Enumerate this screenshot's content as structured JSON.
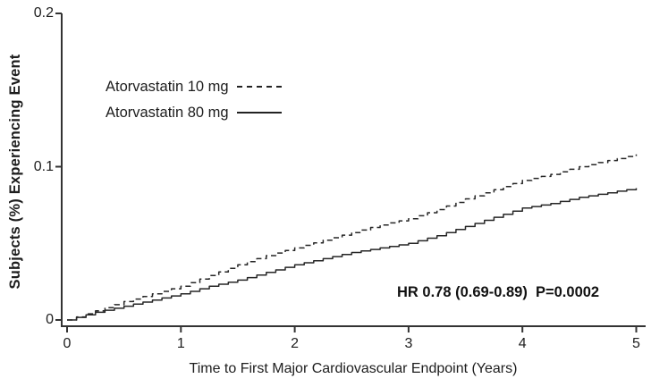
{
  "figure": {
    "y_axis_label": "Subjects (%) Experiencing Event",
    "x_axis_label": "Time to First Major Cardiovascular Endpoint (Years)",
    "annotation": "HR 0.78 (0.69-0.89)  P=0.0002",
    "legend": [
      {
        "label": "Atorvastatin 10 mg",
        "line_style": "dashed"
      },
      {
        "label": "Atorvastatin 80 mg",
        "line_style": "solid"
      }
    ],
    "colors": {
      "line": "#262626",
      "axis": "#333333",
      "background": "#ffffff",
      "text": "#1a1a1a"
    }
  },
  "chart_data": {
    "type": "line",
    "title": "",
    "xlabel": "Time to First Major Cardiovascular Endpoint (Years)",
    "ylabel": "Subjects (%) Experiencing Event",
    "xlim": [
      0,
      5
    ],
    "ylim": [
      0,
      0.2
    ],
    "x_ticks": [
      0,
      1,
      2,
      3,
      4,
      5
    ],
    "x_tick_labels": [
      "0",
      "1",
      "2",
      "3",
      "4",
      "5"
    ],
    "y_ticks": [
      0,
      0.1,
      0.2
    ],
    "y_tick_labels": [
      "0",
      "0.1",
      "0.2"
    ],
    "grid": false,
    "legend_position": "upper-left-inside",
    "annotation": "HR 0.78 (0.69-0.89)  P=0.0002",
    "x": [
      0,
      0.25,
      0.5,
      0.75,
      1,
      1.25,
      1.5,
      1.75,
      2,
      2.25,
      2.5,
      2.75,
      3,
      3.25,
      3.5,
      3.75,
      4,
      4.25,
      4.5,
      4.75,
      5
    ],
    "series": [
      {
        "name": "Atorvastatin 10 mg",
        "line_style": "dashed",
        "values": [
          0,
          0.006,
          0.012,
          0.017,
          0.022,
          0.029,
          0.036,
          0.042,
          0.047,
          0.052,
          0.057,
          0.062,
          0.066,
          0.072,
          0.079,
          0.085,
          0.091,
          0.095,
          0.1,
          0.104,
          0.108
        ]
      },
      {
        "name": "Atorvastatin 80 mg",
        "line_style": "solid",
        "values": [
          0,
          0.005,
          0.009,
          0.013,
          0.017,
          0.022,
          0.026,
          0.031,
          0.036,
          0.04,
          0.044,
          0.047,
          0.05,
          0.055,
          0.061,
          0.067,
          0.073,
          0.076,
          0.08,
          0.083,
          0.086
        ]
      }
    ]
  }
}
